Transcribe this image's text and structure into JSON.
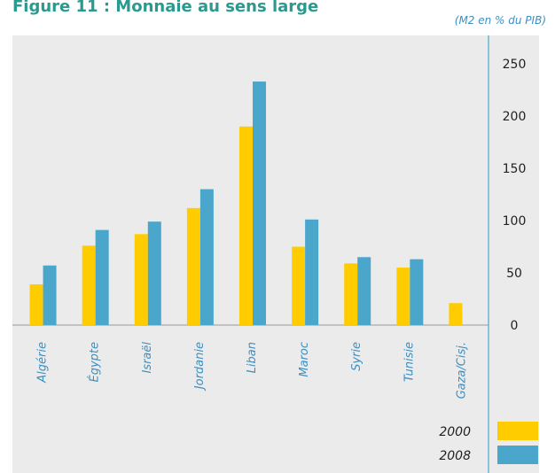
{
  "chart_data": {
    "type": "bar",
    "title": "Figure 11 : Monnaie au sens large",
    "subtitle": "(M2 en % du PIB)",
    "categories": [
      "Algérie",
      "Égypte",
      "Israël",
      "Jordanie",
      "Liban",
      "Maroc",
      "Syrie",
      "Tunisie",
      "Gaza/Cisj."
    ],
    "series": [
      {
        "name": "2000",
        "color": "#ffcc00",
        "values": [
          39,
          76,
          87,
          112,
          190,
          75,
          59,
          55,
          21
        ]
      },
      {
        "name": "2008",
        "color": "#4ba6cc",
        "values": [
          57,
          91,
          99,
          130,
          233,
          101,
          65,
          63,
          null
        ]
      }
    ],
    "ylim": [
      0,
      250
    ],
    "yticks": [
      0,
      50,
      100,
      150,
      200,
      250
    ],
    "grid": false,
    "legend": "bottom-right"
  }
}
